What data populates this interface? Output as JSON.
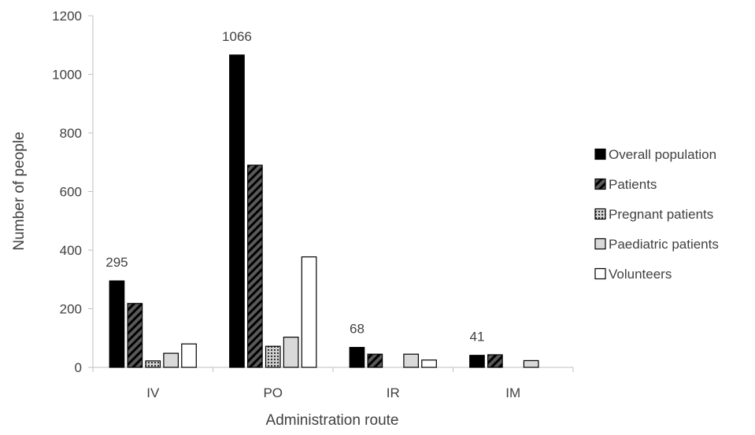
{
  "chart_data": {
    "type": "bar",
    "title": "",
    "xlabel": "Administration route",
    "ylabel": "Number of people",
    "categories": [
      "IV",
      "PO",
      "IR",
      "IM"
    ],
    "ylim": [
      0,
      1200
    ],
    "yticks": [
      0,
      200,
      400,
      600,
      800,
      1000,
      1200
    ],
    "grid": false,
    "legend_position": "right",
    "series": [
      {
        "name": "Overall population",
        "values": [
          295,
          1066,
          68,
          41
        ],
        "fill": "#000000",
        "pattern": "solid"
      },
      {
        "name": "Patients",
        "values": [
          218,
          690,
          45,
          43
        ],
        "fill": "#595959",
        "pattern": "diagonal-stripes"
      },
      {
        "name": "Pregnant patients",
        "values": [
          22,
          72,
          0,
          0
        ],
        "fill": "#808080",
        "pattern": "dots"
      },
      {
        "name": "Paediatric patients",
        "values": [
          48,
          103,
          45,
          23
        ],
        "fill": "#d9d9d9",
        "pattern": "solid"
      },
      {
        "name": "Volunteers",
        "values": [
          80,
          377,
          25,
          0
        ],
        "fill": "#ffffff",
        "pattern": "solid"
      }
    ],
    "data_labels": [
      {
        "series": "Overall population",
        "category": "IV",
        "text": "295"
      },
      {
        "series": "Overall population",
        "category": "PO",
        "text": "1066"
      },
      {
        "series": "Overall population",
        "category": "IR",
        "text": "68"
      },
      {
        "series": "Overall population",
        "category": "IM",
        "text": "41"
      }
    ],
    "colors": {
      "axis": "#bfbfbf",
      "text": "#404040",
      "bar_stroke": "#000000"
    }
  }
}
